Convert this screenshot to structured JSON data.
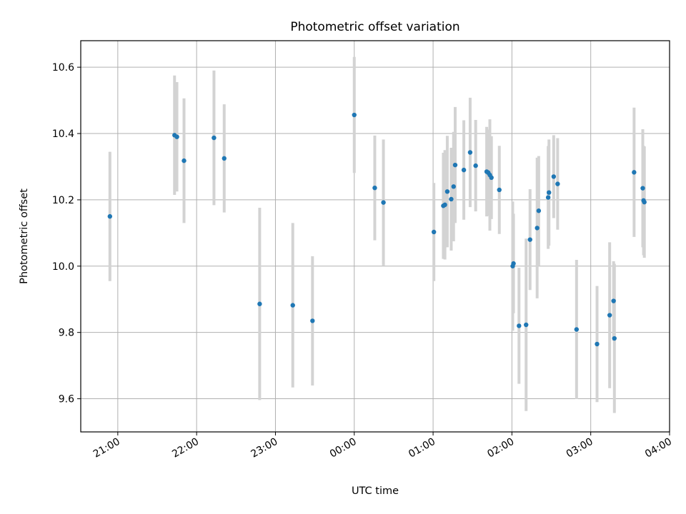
{
  "chart_data": {
    "type": "scatter",
    "title": "Photometric offset variation",
    "xlabel": "UTC time",
    "ylabel": "Photometric offset",
    "x_tick_labels": [
      "21:00",
      "22:00",
      "23:00",
      "00:00",
      "01:00",
      "02:00",
      "03:00",
      "04:00"
    ],
    "y_ticks": [
      9.6,
      9.8,
      10.0,
      10.2,
      10.4,
      10.6
    ],
    "x_range_hours": [
      20.53,
      28.0
    ],
    "ylim": [
      9.5,
      10.68
    ],
    "grid": true,
    "colors": {
      "point": "#1f77b4",
      "errorbar": "#d3d3d3",
      "grid": "#b0b0b0"
    },
    "x_unit": "hours after 00:00 of the first night (values past 24 are after midnight)",
    "points": [
      {
        "x": 20.9,
        "y": 10.15,
        "err": 0.195
      },
      {
        "x": 21.72,
        "y": 10.395,
        "err": 0.18
      },
      {
        "x": 21.75,
        "y": 10.39,
        "err": 0.165
      },
      {
        "x": 21.84,
        "y": 10.318,
        "err": 0.188
      },
      {
        "x": 22.22,
        "y": 10.387,
        "err": 0.203
      },
      {
        "x": 22.35,
        "y": 10.325,
        "err": 0.163
      },
      {
        "x": 22.8,
        "y": 9.886,
        "err": 0.29
      },
      {
        "x": 23.22,
        "y": 9.882,
        "err": 0.248
      },
      {
        "x": 23.47,
        "y": 9.835,
        "err": 0.195
      },
      {
        "x": 24.0,
        "y": 10.456,
        "err": 0.175
      },
      {
        "x": 24.26,
        "y": 10.236,
        "err": 0.158
      },
      {
        "x": 24.37,
        "y": 10.192,
        "err": 0.19
      },
      {
        "x": 25.01,
        "y": 10.103,
        "err": 0.148
      },
      {
        "x": 25.13,
        "y": 10.182,
        "err": 0.16
      },
      {
        "x": 25.15,
        "y": 10.185,
        "err": 0.165
      },
      {
        "x": 25.18,
        "y": 10.225,
        "err": 0.168
      },
      {
        "x": 25.23,
        "y": 10.202,
        "err": 0.155
      },
      {
        "x": 25.26,
        "y": 10.24,
        "err": 0.165
      },
      {
        "x": 25.28,
        "y": 10.305,
        "err": 0.175
      },
      {
        "x": 25.39,
        "y": 10.29,
        "err": 0.15
      },
      {
        "x": 25.47,
        "y": 10.343,
        "err": 0.165
      },
      {
        "x": 25.54,
        "y": 10.303,
        "err": 0.138
      },
      {
        "x": 25.68,
        "y": 10.285,
        "err": 0.135
      },
      {
        "x": 25.7,
        "y": 10.282,
        "err": 0.13
      },
      {
        "x": 25.72,
        "y": 10.275,
        "err": 0.168
      },
      {
        "x": 25.74,
        "y": 10.267,
        "err": 0.125
      },
      {
        "x": 25.84,
        "y": 10.23,
        "err": 0.133
      },
      {
        "x": 26.01,
        "y": 10.0,
        "err": 0.195
      },
      {
        "x": 26.02,
        "y": 10.008,
        "err": 0.15
      },
      {
        "x": 26.09,
        "y": 9.82,
        "err": 0.175
      },
      {
        "x": 26.18,
        "y": 9.823,
        "err": 0.26
      },
      {
        "x": 26.23,
        "y": 10.08,
        "err": 0.152
      },
      {
        "x": 26.32,
        "y": 10.115,
        "err": 0.212
      },
      {
        "x": 26.34,
        "y": 10.167,
        "err": 0.165
      },
      {
        "x": 26.46,
        "y": 10.207,
        "err": 0.155
      },
      {
        "x": 26.47,
        "y": 10.222,
        "err": 0.16
      },
      {
        "x": 26.53,
        "y": 10.27,
        "err": 0.125
      },
      {
        "x": 26.58,
        "y": 10.248,
        "err": 0.138
      },
      {
        "x": 26.82,
        "y": 9.809,
        "err": 0.21
      },
      {
        "x": 27.08,
        "y": 9.765,
        "err": 0.175
      },
      {
        "x": 27.24,
        "y": 9.852,
        "err": 0.22
      },
      {
        "x": 27.29,
        "y": 9.895,
        "err": 0.12
      },
      {
        "x": 27.3,
        "y": 9.782,
        "err": 0.225
      },
      {
        "x": 27.55,
        "y": 10.283,
        "err": 0.195
      },
      {
        "x": 27.66,
        "y": 10.235,
        "err": 0.178
      },
      {
        "x": 27.67,
        "y": 10.198,
        "err": 0.165
      },
      {
        "x": 27.68,
        "y": 10.193,
        "err": 0.168
      }
    ]
  }
}
